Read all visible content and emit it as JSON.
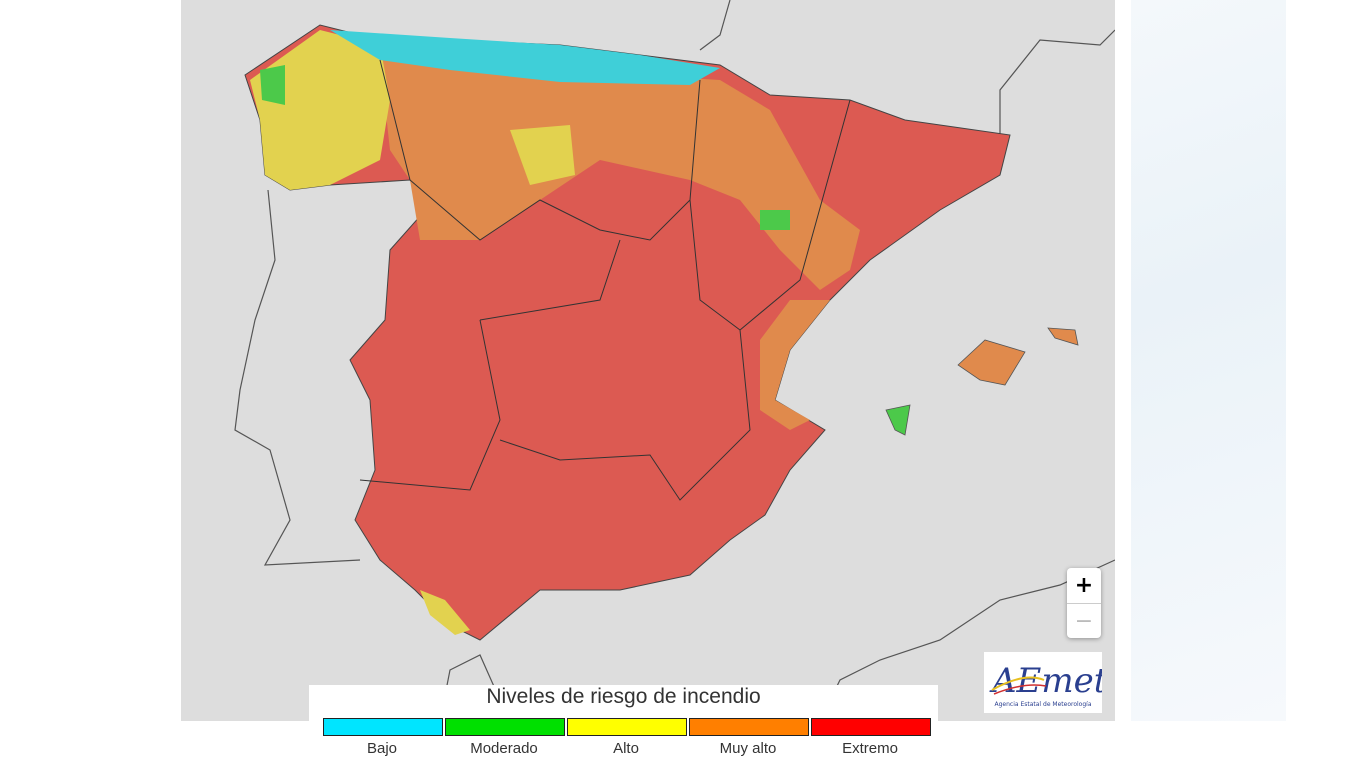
{
  "legend": {
    "title": "Niveles de riesgo de incendio",
    "levels": [
      {
        "label": "Bajo",
        "color": "#00e5ff"
      },
      {
        "label": "Moderado",
        "color": "#00e000"
      },
      {
        "label": "Alto",
        "color": "#ffff00"
      },
      {
        "label": "Muy alto",
        "color": "#ff7f00"
      },
      {
        "label": "Extremo",
        "color": "#ff0000"
      }
    ]
  },
  "zoom": {
    "in": "+",
    "out": "−"
  },
  "logo": {
    "name": "AEmet",
    "subtitle": "Agencia Estatal de Meteorología"
  }
}
